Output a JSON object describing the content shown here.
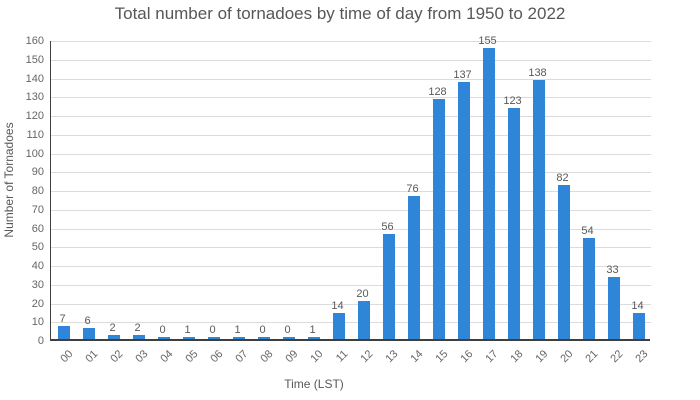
{
  "title": "Total number of tornadoes by time of day from 1950 to 2022",
  "chart_data": {
    "type": "bar",
    "title": "Total number of tornadoes by time of day from 1950 to 2022",
    "categories": [
      "00",
      "01",
      "02",
      "03",
      "04",
      "05",
      "06",
      "07",
      "08",
      "09",
      "10",
      "11",
      "12",
      "13",
      "14",
      "15",
      "16",
      "17",
      "18",
      "19",
      "20",
      "21",
      "22",
      "23"
    ],
    "values": [
      7,
      6,
      2,
      2,
      0,
      1,
      0,
      1,
      0,
      0,
      1,
      14,
      20,
      56,
      76,
      128,
      137,
      155,
      123,
      138,
      82,
      54,
      33,
      14
    ],
    "xlabel": "Time (LST)",
    "ylabel": "Number of Tornadoes",
    "ylim": [
      0,
      160
    ],
    "ytick_step": 10,
    "yticks": [
      0,
      10,
      20,
      30,
      40,
      50,
      60,
      70,
      80,
      90,
      100,
      110,
      120,
      130,
      140,
      150,
      160
    ],
    "grid": true,
    "legend": "none",
    "value_labels_shown": true,
    "x_tick_rotation_deg": -45
  },
  "colors": {
    "bar": "#2f86d8",
    "title_text": "#575757",
    "axis_tick_text": "#666666",
    "value_label_text": "#595959",
    "axis_title_text": "#595959",
    "gridline": "#dcdcdc",
    "axis_line": "#404040",
    "background": "#ffffff"
  }
}
